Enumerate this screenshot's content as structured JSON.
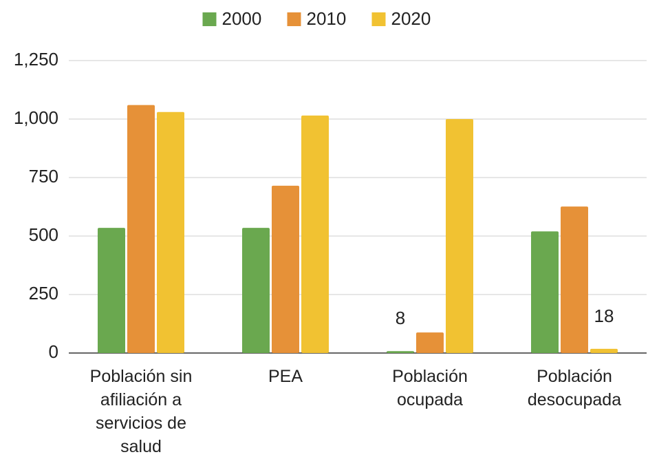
{
  "chart_data": {
    "type": "bar",
    "categories": [
      "Población sin afiliación a servicios de salud",
      "PEA",
      "Población ocupada",
      "Población desocupada"
    ],
    "series": [
      {
        "name": "2000",
        "color": "#6aa84f",
        "values": [
          535,
          535,
          8,
          520
        ],
        "value_labels": [
          null,
          null,
          "8",
          null
        ]
      },
      {
        "name": "2010",
        "color": "#e69138",
        "values": [
          1060,
          715,
          88,
          626
        ],
        "value_labels": [
          null,
          null,
          null,
          null
        ]
      },
      {
        "name": "2020",
        "color": "#f1c232",
        "values": [
          1030,
          1015,
          1000,
          18
        ],
        "value_labels": [
          null,
          null,
          null,
          "18"
        ]
      }
    ],
    "ylim": [
      0,
      1250
    ],
    "yticks": [
      0,
      250,
      500,
      750,
      {
        "value": 1000,
        "label": "1,000"
      },
      {
        "value": 1250,
        "label": "1,250"
      }
    ],
    "grid": true,
    "legend": "top"
  }
}
